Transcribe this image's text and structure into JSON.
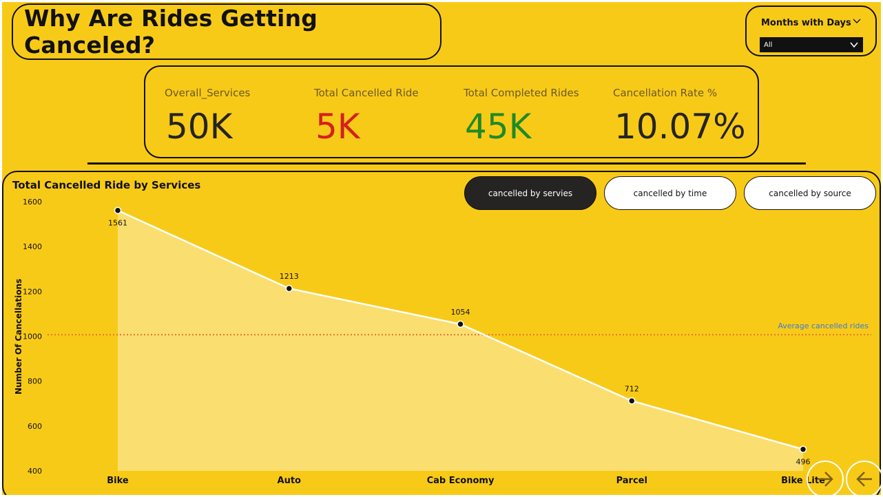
{
  "title": "Why Are Rides Getting Canceled?",
  "slicer": {
    "label": "Months with Days",
    "value": "All"
  },
  "kpis": [
    {
      "label": "Overall_Services",
      "value": "50K",
      "color": "#252423"
    },
    {
      "label": "Total Cancelled Ride",
      "value": "5K",
      "color": "#d4201f"
    },
    {
      "label": "Total Completed Rides",
      "value": "45K",
      "color": "#1f8a27"
    },
    {
      "label": "Cancellation Rate %",
      "value": "10.07%",
      "color": "#252423"
    }
  ],
  "tabs": [
    {
      "label": "cancelled by servies",
      "active": true
    },
    {
      "label": "cancelled by time",
      "active": false
    },
    {
      "label": "cancelled by source",
      "active": false
    }
  ],
  "colors": {
    "background": "#f8ca18",
    "area": "#fbe07a",
    "line": "#ffffff",
    "avg_line": "#e8712a",
    "avg_label": "#3a7bd5"
  },
  "chart_data": {
    "type": "area",
    "title": "Total Cancelled Ride by Services",
    "xlabel": "",
    "ylabel": "Number Of Cancellations",
    "categories": [
      "Bike",
      "Auto",
      "Cab Economy",
      "Parcel",
      "Bike Lite"
    ],
    "values": [
      1561,
      1213,
      1054,
      712,
      496
    ],
    "ylim": [
      400,
      1600
    ],
    "yticks": [
      400,
      600,
      800,
      1000,
      1200,
      1400,
      1600
    ],
    "reference_line": {
      "label": "Average cancelled rides",
      "value": 1007
    }
  },
  "nav": {
    "next_icon": "arrow-right-icon",
    "back_icon": "arrow-left-icon"
  }
}
